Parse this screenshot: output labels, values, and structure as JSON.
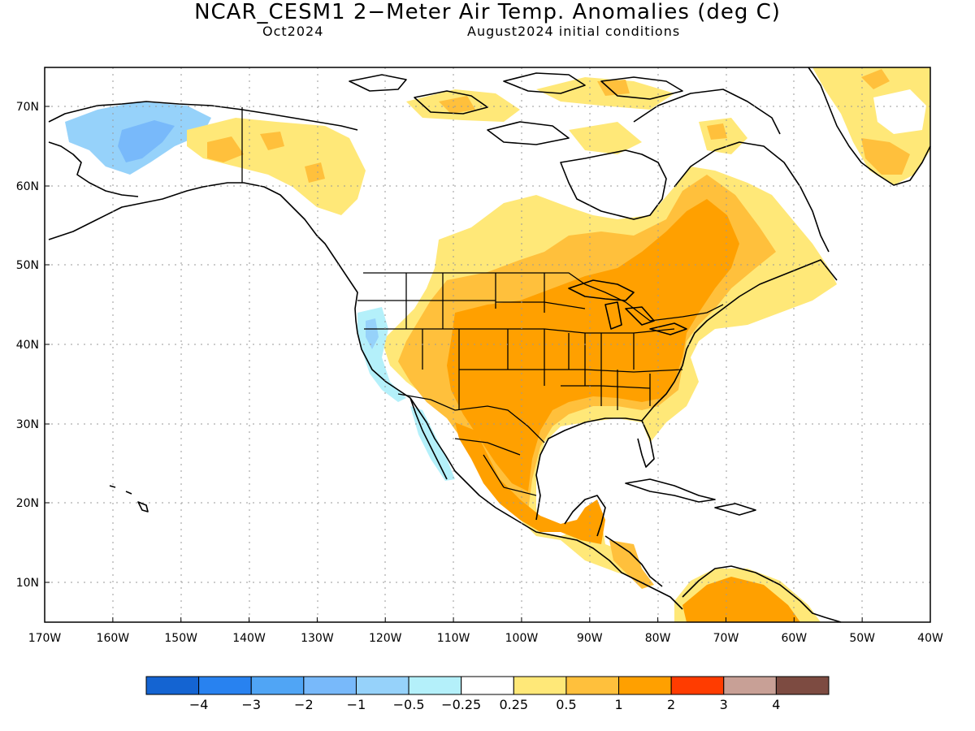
{
  "title": "NCAR_CESM1 2−Meter Air Temp. Anomalies (deg C)",
  "subtitle_left": "Oct2024",
  "subtitle_right": "August2024 initial conditions",
  "lat_labels": [
    "70N",
    "60N",
    "50N",
    "40N",
    "30N",
    "20N",
    "10N"
  ],
  "lon_labels": [
    "170W",
    "160W",
    "150W",
    "140W",
    "130W",
    "120W",
    "110W",
    "100W",
    "90W",
    "80W",
    "70W",
    "60W",
    "50W",
    "40W"
  ],
  "colorbar": {
    "colors": [
      "#1464d2",
      "#2882f0",
      "#50a5f5",
      "#78b9fa",
      "#96d2fa",
      "#b4f0fa",
      "#ffffff",
      "#ffe878",
      "#ffc03c",
      "#ffa000",
      "#ff3c00",
      "#c8a096",
      "#7d4b41"
    ],
    "labels": [
      "−4",
      "−3",
      "−2",
      "−1",
      "−0.5",
      "−0.25",
      "0.25",
      "0.5",
      "1",
      "2",
      "3",
      "4"
    ]
  },
  "colors": {
    "cold_strong": "#78b9fa",
    "cold_mid": "#96d2fa",
    "cold_light": "#b4f0fa",
    "warm_light": "#ffe878",
    "warm_mid": "#ffc03c",
    "warm_strong": "#ffa000"
  }
}
